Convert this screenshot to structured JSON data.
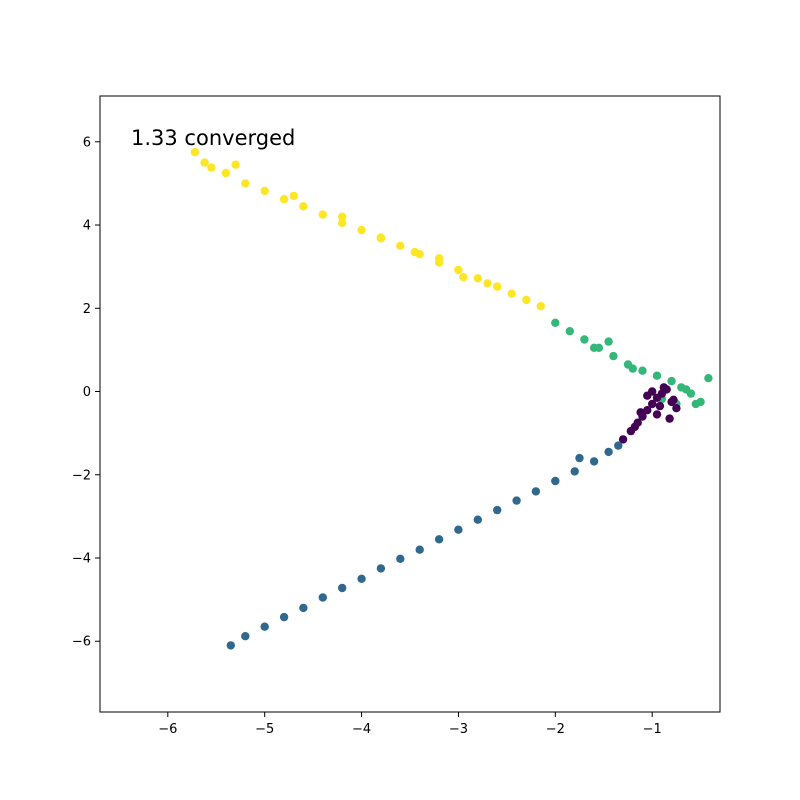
{
  "chart_data": {
    "type": "scatter",
    "title": "",
    "xlabel": "",
    "ylabel": "",
    "xlim": [
      -6.7,
      -0.3
    ],
    "ylim": [
      -7.7,
      7.1
    ],
    "xticks": [
      -6,
      -5,
      -4,
      -3,
      -2,
      -1
    ],
    "yticks": [
      -6,
      -4,
      -2,
      0,
      2,
      4,
      6
    ],
    "xtick_labels": [
      "−6",
      "−5",
      "−4",
      "−3",
      "−2",
      "−1"
    ],
    "ytick_labels": [
      "−6",
      "−4",
      "−2",
      "0",
      "2",
      "4",
      "6"
    ],
    "grid": false,
    "legend": "none",
    "annotation": "1.33 converged",
    "series": [
      {
        "color": "#fde725",
        "x": [
          -5.72,
          -5.62,
          -5.55,
          -5.4,
          -5.2,
          -5.0,
          -4.8,
          -4.6,
          -4.4,
          -4.2,
          -4.0,
          -3.8,
          -3.6,
          -3.4,
          -3.2,
          -3.0,
          -2.8,
          -2.6,
          -2.45,
          -2.3,
          -2.15,
          -5.3,
          -4.7,
          -4.2,
          -3.8,
          -3.2,
          -2.7,
          -2.95,
          -3.45
        ],
        "y": [
          5.75,
          5.5,
          5.38,
          5.25,
          5.0,
          4.82,
          4.62,
          4.45,
          4.25,
          4.05,
          3.88,
          3.68,
          3.5,
          3.3,
          3.1,
          2.92,
          2.72,
          2.52,
          2.35,
          2.2,
          2.05,
          5.45,
          4.7,
          4.2,
          3.7,
          3.2,
          2.6,
          2.75,
          3.35
        ]
      },
      {
        "color": "#35b779",
        "x": [
          -2.0,
          -1.85,
          -1.7,
          -1.55,
          -1.4,
          -1.25,
          -1.1,
          -0.95,
          -0.8,
          -0.7,
          -0.6,
          -0.5,
          -0.42,
          -0.75,
          -0.9,
          -1.2,
          -1.45,
          -1.6,
          -0.65,
          -0.55
        ],
        "y": [
          1.65,
          1.45,
          1.25,
          1.05,
          0.85,
          0.65,
          0.5,
          0.38,
          0.25,
          0.1,
          -0.05,
          -0.25,
          0.32,
          -0.3,
          -0.18,
          0.55,
          1.2,
          1.05,
          0.05,
          -0.3
        ]
      },
      {
        "color": "#440154",
        "x": [
          -1.3,
          -1.22,
          -1.15,
          -1.1,
          -1.05,
          -1.0,
          -0.95,
          -0.9,
          -0.85,
          -0.8,
          -0.75,
          -0.95,
          -1.05,
          -1.12,
          -0.88,
          -0.82,
          -1.0,
          -0.92,
          -0.78,
          -1.18
        ],
        "y": [
          -1.15,
          -0.95,
          -0.75,
          -0.6,
          -0.45,
          -0.3,
          -0.15,
          -0.05,
          0.05,
          -0.25,
          -0.4,
          -0.55,
          -0.1,
          -0.5,
          0.1,
          -0.65,
          0.0,
          -0.35,
          -0.2,
          -0.85
        ]
      },
      {
        "color": "#31688e",
        "x": [
          -5.35,
          -5.2,
          -5.0,
          -4.8,
          -4.6,
          -4.4,
          -4.2,
          -4.0,
          -3.8,
          -3.6,
          -3.4,
          -3.2,
          -3.0,
          -2.8,
          -2.6,
          -2.4,
          -2.2,
          -2.0,
          -1.8,
          -1.6,
          -1.45,
          -1.35,
          -1.75
        ],
        "y": [
          -6.1,
          -5.88,
          -5.65,
          -5.42,
          -5.2,
          -4.95,
          -4.72,
          -4.5,
          -4.25,
          -4.02,
          -3.8,
          -3.55,
          -3.32,
          -3.08,
          -2.85,
          -2.62,
          -2.4,
          -2.15,
          -1.92,
          -1.68,
          -1.45,
          -1.3,
          -1.6
        ]
      }
    ]
  }
}
